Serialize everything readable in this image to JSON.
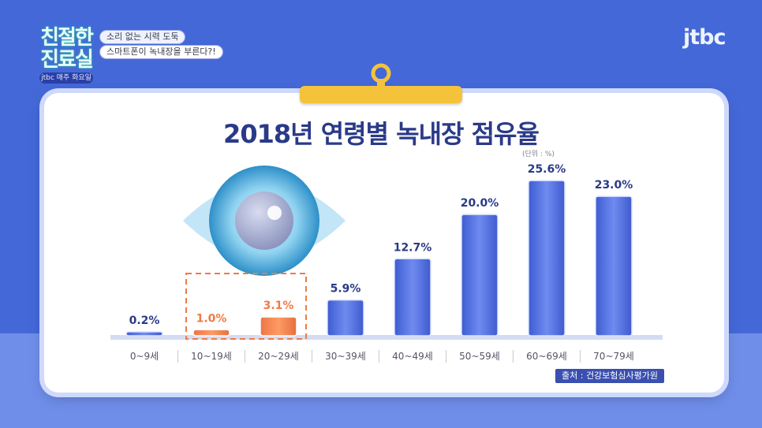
{
  "show": {
    "logo_text": "친절한 진료실",
    "logo_tag": "jtbc 매주 화요일",
    "caption_1": "소리 없는 시력 도둑",
    "caption_2": "스마트폰이 녹내장을 부른다?!",
    "channel": "jtbc"
  },
  "colors": {
    "background": "#4468d8",
    "bar_blue": "#4f6fe0",
    "bar_highlight": "#f0814f",
    "title": "#2a3a88",
    "highlight_box": "#ef7a45",
    "board": "#ffffff",
    "clip": "#f5c33b"
  },
  "icons": {
    "eye": "eye-icon",
    "clip": "clipboard-clip-icon"
  },
  "source_label": "출처 : 건강보험심사평가원",
  "chart_data": {
    "type": "bar",
    "title": "2018년 연령별 녹내장 점유율",
    "unit": "(단위 : %)",
    "categories": [
      "0~9세",
      "10~19세",
      "20~29세",
      "30~39세",
      "40~49세",
      "50~59세",
      "60~69세",
      "70~79세"
    ],
    "values": [
      0.2,
      1.0,
      3.1,
      5.9,
      12.7,
      20.0,
      25.6,
      23.0
    ],
    "value_labels": [
      "0.2%",
      "1.0%",
      "3.1%",
      "5.9%",
      "12.7%",
      "20.0%",
      "25.6%",
      "23.0%"
    ],
    "highlighted": [
      1,
      2
    ],
    "ylim": [
      0,
      26
    ],
    "grid": false,
    "legend": "none",
    "xlabel": "",
    "ylabel": ""
  }
}
